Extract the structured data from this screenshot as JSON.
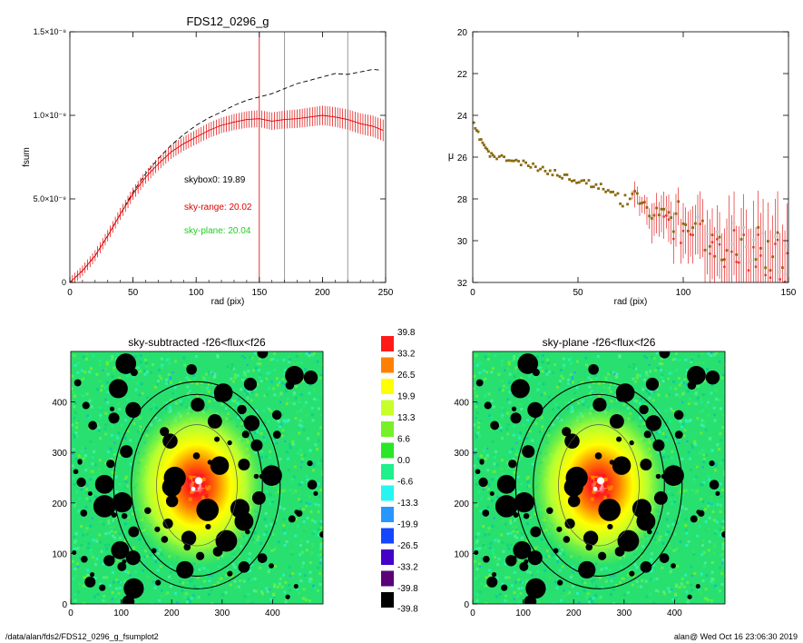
{
  "footer": {
    "left": "/data/alan/fds2/FDS12_0296_g_fsumplot2",
    "right": "alan@  Wed Oct 16 23:06:30 2019"
  },
  "colors": {
    "primary_profile": "#000000",
    "sky_range": "#e00000",
    "sky_plane": "#22cc22",
    "points": "#8a6a10"
  },
  "chart_data": [
    {
      "type": "line",
      "title": "FDS12_0296_g",
      "xlabel": "rad (pix)",
      "ylabel": "fsum",
      "xlim": [
        0,
        250
      ],
      "ylim": [
        0,
        1.5e-08
      ],
      "xticks": [
        "0",
        "50",
        "100",
        "150",
        "200",
        "250"
      ],
      "yticks": [
        "0",
        "5.0×10⁻⁹",
        "1.0×10⁻⁸",
        "1.5×10⁻⁸"
      ],
      "vlines": [
        {
          "x": 150,
          "color": "#e00000"
        },
        {
          "x": 170,
          "color": "#808080"
        },
        {
          "x": 220,
          "color": "#808080"
        }
      ],
      "annotations": [
        {
          "text": "skybox0: 19.89",
          "color": "#000000"
        },
        {
          "text": "sky-range: 20.02",
          "color": "#e00000"
        },
        {
          "text": "sky-plane: 20.04",
          "color": "#22cc22"
        }
      ],
      "series": [
        {
          "style": "dashed",
          "color": "#000000",
          "x": [
            0,
            10,
            20,
            30,
            40,
            50,
            60,
            70,
            80,
            90,
            100,
            110,
            120,
            130,
            140,
            150,
            160,
            170,
            180,
            190,
            200,
            210,
            220,
            230,
            240,
            246
          ],
          "y": [
            0,
            7e-10,
            1.6e-09,
            2.8e-09,
            4.1e-09,
            5.4e-09,
            6.5e-09,
            7.4e-09,
            8.2e-09,
            8.85e-09,
            9.4e-09,
            9.85e-09,
            1.02e-08,
            1.06e-08,
            1.09e-08,
            1.11e-08,
            1.13e-08,
            1.16e-08,
            1.19e-08,
            1.21e-08,
            1.23e-08,
            1.25e-08,
            1.245e-08,
            1.26e-08,
            1.275e-08,
            1.27e-08
          ]
        },
        {
          "style": "solid",
          "color": "#e00000",
          "x": [
            0,
            10,
            20,
            30,
            40,
            50,
            60,
            70,
            80,
            90,
            100,
            110,
            120,
            130,
            140,
            150,
            160,
            170,
            180,
            190,
            200,
            210,
            220,
            230,
            240,
            248
          ],
          "y": [
            0,
            7e-10,
            1.6e-09,
            2.8e-09,
            4.1e-09,
            5.3e-09,
            6.3e-09,
            7.1e-09,
            7.8e-09,
            8.3e-09,
            8.7e-09,
            9.1e-09,
            9.4e-09,
            9.6e-09,
            9.75e-09,
            9.8e-09,
            9.65e-09,
            9.75e-09,
            9.8e-09,
            9.9e-09,
            1e-08,
            9.9e-09,
            9.75e-09,
            9.5e-09,
            9.35e-09,
            9.1e-09
          ]
        }
      ]
    },
    {
      "type": "scatter",
      "xlabel": "rad (pix)",
      "ylabel": "μ",
      "xlim": [
        0,
        150
      ],
      "ylim": [
        20,
        32
      ],
      "y_inverted": true,
      "xticks": [
        "0",
        "50",
        "100",
        "150"
      ],
      "yticks": [
        "20",
        "22",
        "24",
        "26",
        "28",
        "30",
        "32"
      ],
      "trend": [
        [
          0,
          24.4
        ],
        [
          3,
          25.0
        ],
        [
          8,
          25.9
        ],
        [
          20,
          26.2
        ],
        [
          40,
          26.8
        ],
        [
          60,
          27.4
        ],
        [
          80,
          28.2
        ],
        [
          100,
          29.2
        ],
        [
          120,
          30.0
        ],
        [
          150,
          30.7
        ]
      ]
    },
    {
      "type": "heatmap",
      "title": "sky-subtracted -f26<flux<f26",
      "xlim": [
        0,
        500
      ],
      "ylim": [
        0,
        500
      ],
      "xticks": [
        "0",
        "100",
        "200",
        "300",
        "400"
      ],
      "yticks": [
        "0",
        "100",
        "200",
        "300",
        "400"
      ],
      "galaxy_center": [
        250,
        235
      ],
      "ellipse_semi_axes": [
        [
          80,
          120
        ],
        [
          130,
          180
        ],
        [
          165,
          205
        ]
      ]
    },
    {
      "type": "heatmap",
      "title": "sky-plane -f26<flux<f26",
      "xlim": [
        0,
        500
      ],
      "ylim": [
        0,
        500
      ],
      "xticks": [
        "0",
        "100",
        "200",
        "300",
        "400"
      ],
      "yticks": [
        "0",
        "100",
        "200",
        "300",
        "400"
      ],
      "galaxy_center": [
        250,
        235
      ],
      "ellipse_semi_axes": [
        [
          80,
          120
        ],
        [
          130,
          180
        ],
        [
          165,
          205
        ]
      ]
    },
    {
      "type": "colorbar",
      "labels": [
        "39.8",
        "33.2",
        "26.5",
        "19.9",
        "13.3",
        "6.6",
        "0.0",
        "-6.6",
        "-13.3",
        "-19.9",
        "-26.5",
        "-33.2",
        "-39.8"
      ],
      "colors": [
        "#ff1a1a",
        "#ff8000",
        "#ffff00",
        "#c8ff28",
        "#78f028",
        "#28e628",
        "#1ef08c",
        "#28f5f0",
        "#2896ff",
        "#1446ff",
        "#4600c8",
        "#5a0078",
        "#000000"
      ]
    }
  ]
}
